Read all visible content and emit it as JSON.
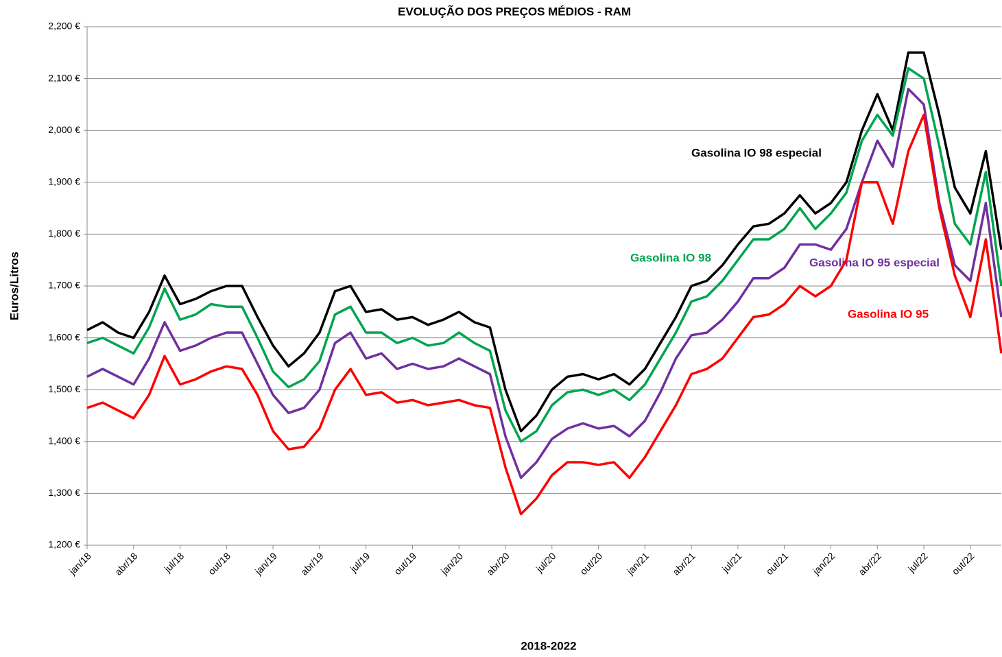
{
  "chart_data": {
    "type": "line",
    "title": "EVOLUÇÃO DOS PREÇOS MÉDIOS - RAM",
    "y_label": "Euros/Litros",
    "x_label": "2018-2022",
    "categories": [
      "jan/18",
      null,
      null,
      "abr/18",
      null,
      null,
      "jul/18",
      null,
      null,
      "out/18",
      null,
      null,
      "jan/19",
      null,
      null,
      "abr/19",
      null,
      null,
      "jul/19",
      null,
      null,
      "out/19",
      null,
      null,
      "jan/20",
      null,
      null,
      "abr/20",
      null,
      null,
      "jul/20",
      null,
      null,
      "out/20",
      null,
      null,
      "jan/21",
      null,
      null,
      "abr/21",
      null,
      null,
      "jul/21",
      null,
      null,
      "out/21",
      null,
      null,
      "jan/22",
      null,
      null,
      "abr/22",
      null,
      null,
      "jul/22",
      null,
      null,
      "out/22",
      null,
      null
    ],
    "series": [
      {
        "name": "Gasolina IO 98 especial",
        "color": "#000000",
        "values": [
          1.615,
          1.63,
          1.61,
          1.6,
          1.65,
          1.72,
          1.665,
          1.675,
          1.69,
          1.7,
          1.7,
          1.64,
          1.585,
          1.545,
          1.57,
          1.61,
          1.69,
          1.7,
          1.65,
          1.655,
          1.635,
          1.64,
          1.625,
          1.635,
          1.65,
          1.63,
          1.62,
          1.5,
          1.42,
          1.45,
          1.5,
          1.525,
          1.53,
          1.52,
          1.53,
          1.51,
          1.54,
          1.59,
          1.64,
          1.7,
          1.71,
          1.74,
          1.78,
          1.815,
          1.82,
          1.84,
          1.875,
          1.84,
          1.86,
          1.9,
          2.0,
          2.07,
          2.0,
          2.15,
          2.15,
          2.03,
          1.89,
          1.84,
          1.96,
          1.77
        ]
      },
      {
        "name": "Gasolina IO 98",
        "color": "#00a550",
        "values": [
          1.59,
          1.6,
          1.585,
          1.57,
          1.62,
          1.695,
          1.635,
          1.645,
          1.665,
          1.66,
          1.66,
          1.6,
          1.535,
          1.505,
          1.52,
          1.555,
          1.645,
          1.66,
          1.61,
          1.61,
          1.59,
          1.6,
          1.585,
          1.59,
          1.61,
          1.59,
          1.575,
          1.46,
          1.4,
          1.42,
          1.47,
          1.495,
          1.5,
          1.49,
          1.5,
          1.48,
          1.51,
          1.56,
          1.61,
          1.67,
          1.68,
          1.71,
          1.75,
          1.79,
          1.79,
          1.81,
          1.85,
          1.81,
          1.84,
          1.88,
          1.98,
          2.03,
          1.99,
          2.12,
          2.1,
          1.97,
          1.82,
          1.78,
          1.92,
          1.7
        ]
      },
      {
        "name": "Gasolina IO 95 especial",
        "color": "#7030a0",
        "values": [
          1.525,
          1.54,
          1.525,
          1.51,
          1.56,
          1.63,
          1.575,
          1.585,
          1.6,
          1.61,
          1.61,
          1.55,
          1.49,
          1.455,
          1.465,
          1.5,
          1.59,
          1.61,
          1.56,
          1.57,
          1.54,
          1.55,
          1.54,
          1.545,
          1.56,
          1.545,
          1.53,
          1.41,
          1.33,
          1.36,
          1.405,
          1.425,
          1.435,
          1.425,
          1.43,
          1.41,
          1.44,
          1.495,
          1.56,
          1.605,
          1.61,
          1.635,
          1.67,
          1.715,
          1.715,
          1.735,
          1.78,
          1.78,
          1.77,
          1.81,
          1.9,
          1.98,
          1.93,
          2.08,
          2.05,
          1.86,
          1.74,
          1.71,
          1.86,
          1.64
        ]
      },
      {
        "name": "Gasolina IO 95",
        "color": "#ff0000",
        "values": [
          1.465,
          1.475,
          1.46,
          1.445,
          1.49,
          1.565,
          1.51,
          1.52,
          1.535,
          1.545,
          1.54,
          1.49,
          1.42,
          1.385,
          1.39,
          1.425,
          1.5,
          1.54,
          1.49,
          1.495,
          1.475,
          1.48,
          1.47,
          1.475,
          1.48,
          1.47,
          1.465,
          1.35,
          1.26,
          1.29,
          1.335,
          1.36,
          1.36,
          1.355,
          1.36,
          1.33,
          1.37,
          1.42,
          1.47,
          1.53,
          1.54,
          1.56,
          1.6,
          1.64,
          1.645,
          1.665,
          1.7,
          1.68,
          1.7,
          1.75,
          1.9,
          1.9,
          1.82,
          1.96,
          2.03,
          1.85,
          1.72,
          1.64,
          1.79,
          1.57
        ]
      }
    ],
    "ylim": [
      1.2,
      2.2
    ],
    "yticks": [
      {
        "value": 1.2,
        "label": "1,200 €"
      },
      {
        "value": 1.3,
        "label": "1,300 €"
      },
      {
        "value": 1.4,
        "label": "1,400 €"
      },
      {
        "value": 1.5,
        "label": "1,500 €"
      },
      {
        "value": 1.6,
        "label": "1,600 €"
      },
      {
        "value": 1.7,
        "label": "1,700 €"
      },
      {
        "value": 1.8,
        "label": "1,800 €"
      },
      {
        "value": 1.9,
        "label": "1,900 €"
      },
      {
        "value": 2.0,
        "label": "2,000 €"
      },
      {
        "value": 2.1,
        "label": "2,100 €"
      },
      {
        "value": 2.2,
        "label": "2,200 €"
      }
    ],
    "grid": true
  }
}
